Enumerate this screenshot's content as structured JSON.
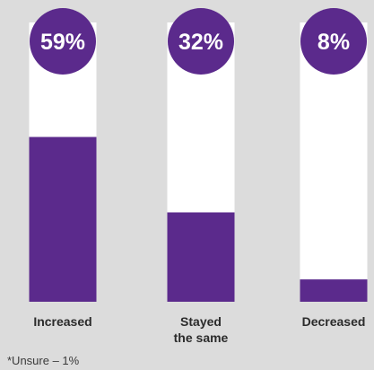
{
  "chart_data": {
    "type": "bar",
    "categories": [
      "Increased",
      "Stayed\nthe same",
      "Decreased"
    ],
    "values": [
      59,
      32,
      8
    ],
    "value_labels": [
      "59%",
      "32%",
      "8%"
    ],
    "ylim": [
      0,
      100
    ],
    "title": "",
    "xlabel": "",
    "ylabel": "",
    "grid": false,
    "legend": "none",
    "colors": {
      "bar": "#5b2a8c",
      "track": "#ffffff",
      "label_circle": "#5b2a8c",
      "label_text": "#ffffff",
      "background": "#dcdcdc"
    }
  },
  "footnote": "*Unsure – 1%"
}
